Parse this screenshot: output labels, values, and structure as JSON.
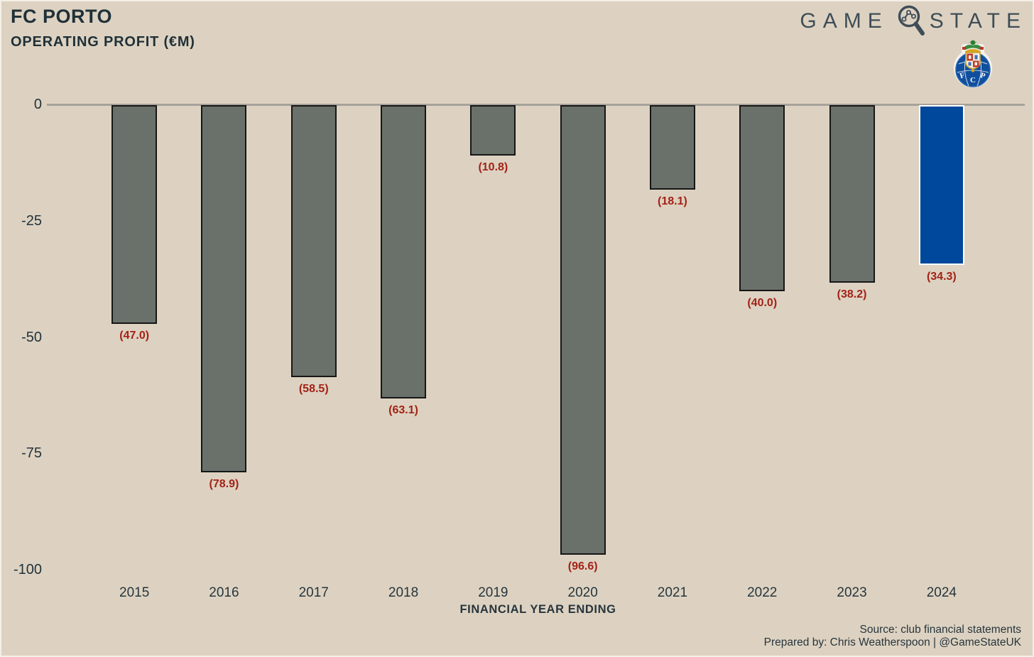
{
  "header": {
    "title": "FC PORTO",
    "subtitle": "OPERATING PROFIT (€M)"
  },
  "brand": {
    "word_left": "GAME",
    "word_right": "STATE",
    "icon": "magnifier-chart-icon",
    "crest": "fc-porto-crest",
    "text_color": "#3e4d57"
  },
  "chart_data": {
    "type": "bar",
    "title": "FC PORTO — OPERATING PROFIT (€M)",
    "categories": [
      "2015",
      "2016",
      "2017",
      "2018",
      "2019",
      "2020",
      "2021",
      "2022",
      "2023",
      "2024"
    ],
    "values": [
      -47.0,
      -78.9,
      -58.5,
      -63.1,
      -10.8,
      -96.6,
      -18.1,
      -40.0,
      -38.2,
      -34.3
    ],
    "value_labels": [
      "(47.0)",
      "(78.9)",
      "(58.5)",
      "(63.1)",
      "(10.8)",
      "(96.6)",
      "(18.1)",
      "(40.0)",
      "(38.2)",
      "(34.3)"
    ],
    "bar_colors": [
      "#6a716a",
      "#6a716a",
      "#6a716a",
      "#6a716a",
      "#6a716a",
      "#6a716a",
      "#6a716a",
      "#6a716a",
      "#6a716a",
      "#00489b"
    ],
    "highlight_category": "2024",
    "xlabel": "FINANCIAL YEAR ENDING",
    "ylabel": "",
    "ylim": [
      -100,
      0
    ],
    "yticks": [
      0,
      -25,
      -50,
      -75,
      -100
    ],
    "ytick_labels": [
      "0",
      "-25",
      "-50",
      "-75",
      "-100"
    ],
    "grid": false,
    "legend": "none",
    "value_label_color": "#a32217",
    "bar_border_default": "#161616",
    "bar_border_highlight": "#ffffff",
    "background_color": "#ddd2c1",
    "zero_line_color": "#a6a29b"
  },
  "footer": {
    "source": "Source: club financial statements",
    "prepared": "Prepared by: Chris Weatherspoon | @GameStateUK"
  }
}
